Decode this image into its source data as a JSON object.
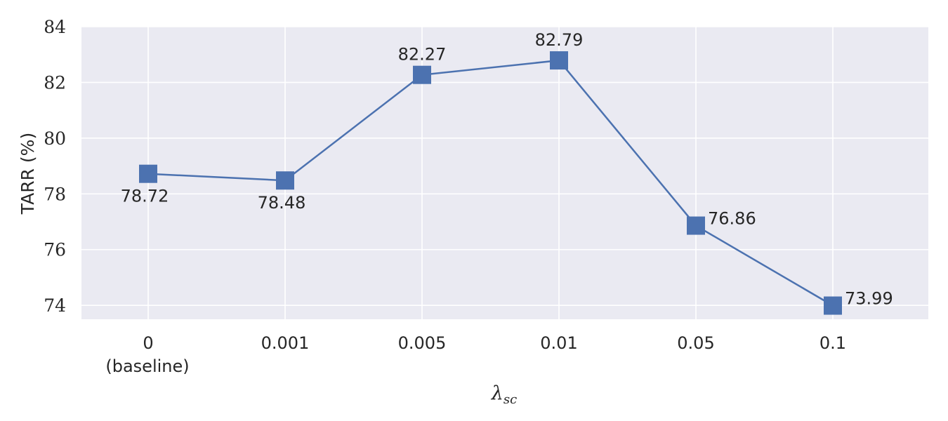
{
  "chart_data": {
    "type": "line",
    "categories": [
      "0",
      "0.001",
      "0.005",
      "0.01",
      "0.05",
      "0.1"
    ],
    "category_sublabels": [
      "(baseline)",
      "",
      "",
      "",
      "",
      ""
    ],
    "values": [
      78.72,
      78.48,
      82.27,
      82.79,
      76.86,
      73.99
    ],
    "data_labels": [
      "78.72",
      "78.48",
      "82.27",
      "82.79",
      "76.86",
      "73.99"
    ],
    "ylabel": "TARR (%)",
    "xlabel": {
      "symbol": "λ",
      "subscript": "sc"
    },
    "ylim": [
      73.5,
      84
    ],
    "yticks": [
      74,
      76,
      78,
      80,
      82,
      84
    ],
    "grid": true,
    "marker": "square",
    "colors": {
      "line": "#4c72b0",
      "background": "#eaeaf2",
      "grid": "#ffffff"
    }
  }
}
